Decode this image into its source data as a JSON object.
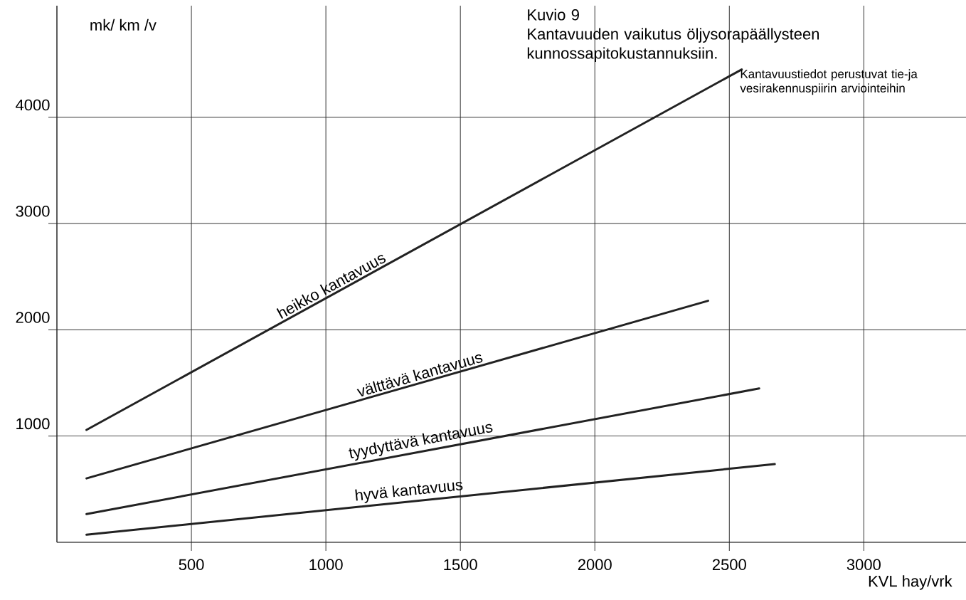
{
  "chart_data": {
    "type": "line",
    "title": "Kuvio 9",
    "subtitle": "Kantavuuden vaikutus öljysorapäällysteen kunnossapitokustannuksiin.",
    "xlabel": "KVL hay/vrk",
    "ylabel": "mk/ km /v",
    "annotations": [
      "Kantavuustiedot perustuvat tie-ja vesirakennuspiirin arviointeihin"
    ],
    "series": [
      {
        "name": "heikko kantavuus",
        "color": "#222222",
        "x": [
          110,
          2546
        ],
        "values": [
          1058,
          4450
        ]
      },
      {
        "name": "välttävä kantavuus",
        "color": "#222222",
        "x": [
          110,
          2421
        ],
        "values": [
          602,
          2273
        ]
      },
      {
        "name": "tyydyttävä kantavuus",
        "color": "#222222",
        "x": [
          110,
          2611
        ],
        "values": [
          266,
          1448
        ]
      },
      {
        "name": "hyvä kantavuus",
        "color": "#222222",
        "x": [
          110,
          2669
        ],
        "values": [
          72,
          736
        ]
      }
    ],
    "xlim": [
      0,
      3380
    ],
    "ylim": [
      0,
      5050
    ],
    "xticks": [
      500,
      1000,
      1500,
      2000,
      2500,
      3000
    ],
    "yticks": [
      1000,
      2000,
      3000,
      4000
    ],
    "grid": true,
    "legend": false
  }
}
